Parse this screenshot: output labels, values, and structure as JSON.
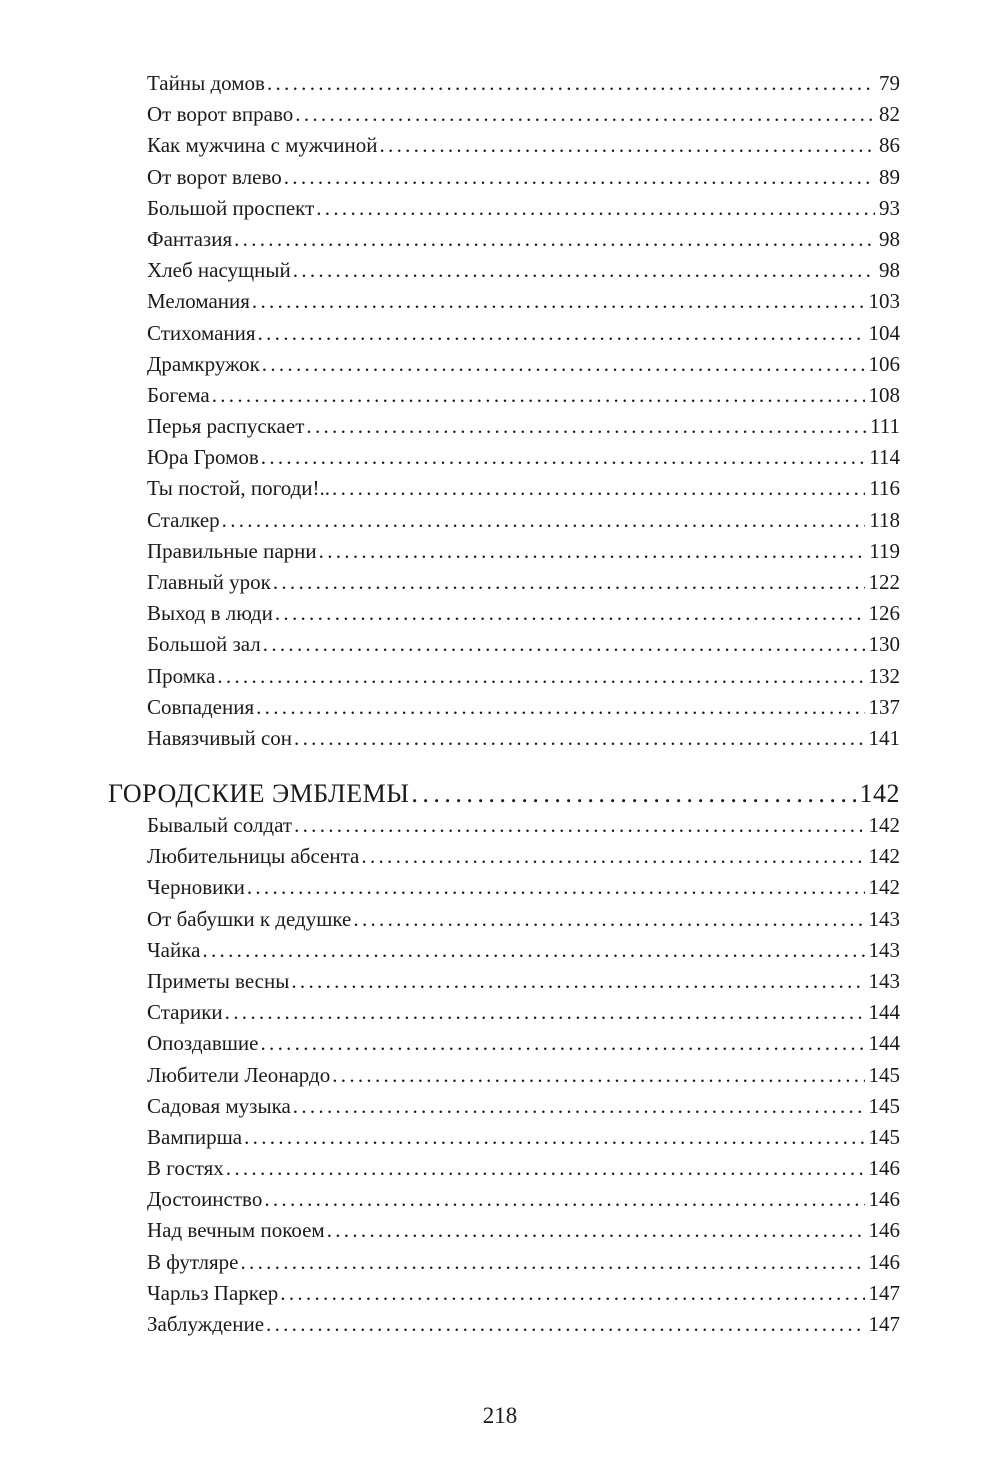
{
  "section1": {
    "entries": [
      {
        "title": "Тайны домов",
        "page": "79"
      },
      {
        "title": "От ворот вправо",
        "page": "82"
      },
      {
        "title": "Как мужчина с мужчиной",
        "page": "86"
      },
      {
        "title": "От ворот влево",
        "page": "89"
      },
      {
        "title": "Большой проспект",
        "page": "93"
      },
      {
        "title": "Фантазия",
        "page": "98"
      },
      {
        "title": "Хлеб насущный",
        "page": "98"
      },
      {
        "title": "Меломания",
        "page": "103"
      },
      {
        "title": "Стихомания",
        "page": "104"
      },
      {
        "title": "Драмкружок",
        "page": "106"
      },
      {
        "title": "Богема",
        "page": "108"
      },
      {
        "title": "Перья распускает",
        "page": "111"
      },
      {
        "title": "Юра Громов",
        "page": "114"
      },
      {
        "title": "Ты постой, погоди!..",
        "page": "116"
      },
      {
        "title": "Сталкер",
        "page": "118"
      },
      {
        "title": "Правильные парни",
        "page": "119"
      },
      {
        "title": "Главный урок",
        "page": "122"
      },
      {
        "title": "Выход в люди",
        "page": "126"
      },
      {
        "title": "Большой зал",
        "page": "130"
      },
      {
        "title": "Промка",
        "page": "132"
      },
      {
        "title": "Совпадения",
        "page": "137"
      },
      {
        "title": "Навязчивый сон",
        "page": "141"
      }
    ]
  },
  "section2": {
    "heading": {
      "title": "ГОРОДСКИЕ ЭМБЛЕМЫ",
      "page": "142"
    },
    "entries": [
      {
        "title": "Бывалый солдат",
        "page": "142"
      },
      {
        "title": "Любительницы абсента",
        "page": "142"
      },
      {
        "title": "Черновики",
        "page": "142"
      },
      {
        "title": "От бабушки к дедушке",
        "page": "143"
      },
      {
        "title": "Чайка",
        "page": "143"
      },
      {
        "title": "Приметы весны",
        "page": "143"
      },
      {
        "title": "Старики",
        "page": "144"
      },
      {
        "title": "Опоздавшие",
        "page": "144"
      },
      {
        "title": "Любители Леонардо",
        "page": "145"
      },
      {
        "title": "Садовая музыка",
        "page": "145"
      },
      {
        "title": "Вампирша",
        "page": "145"
      },
      {
        "title": "В гостях",
        "page": "146"
      },
      {
        "title": "Достоинство",
        "page": "146"
      },
      {
        "title": "Над вечным покоем",
        "page": "146"
      },
      {
        "title": "В футляре",
        "page": "146"
      },
      {
        "title": "Чарльз Паркер",
        "page": "147"
      },
      {
        "title": "Заблуждение",
        "page": "147"
      }
    ]
  },
  "footer": {
    "page_number": "218"
  }
}
